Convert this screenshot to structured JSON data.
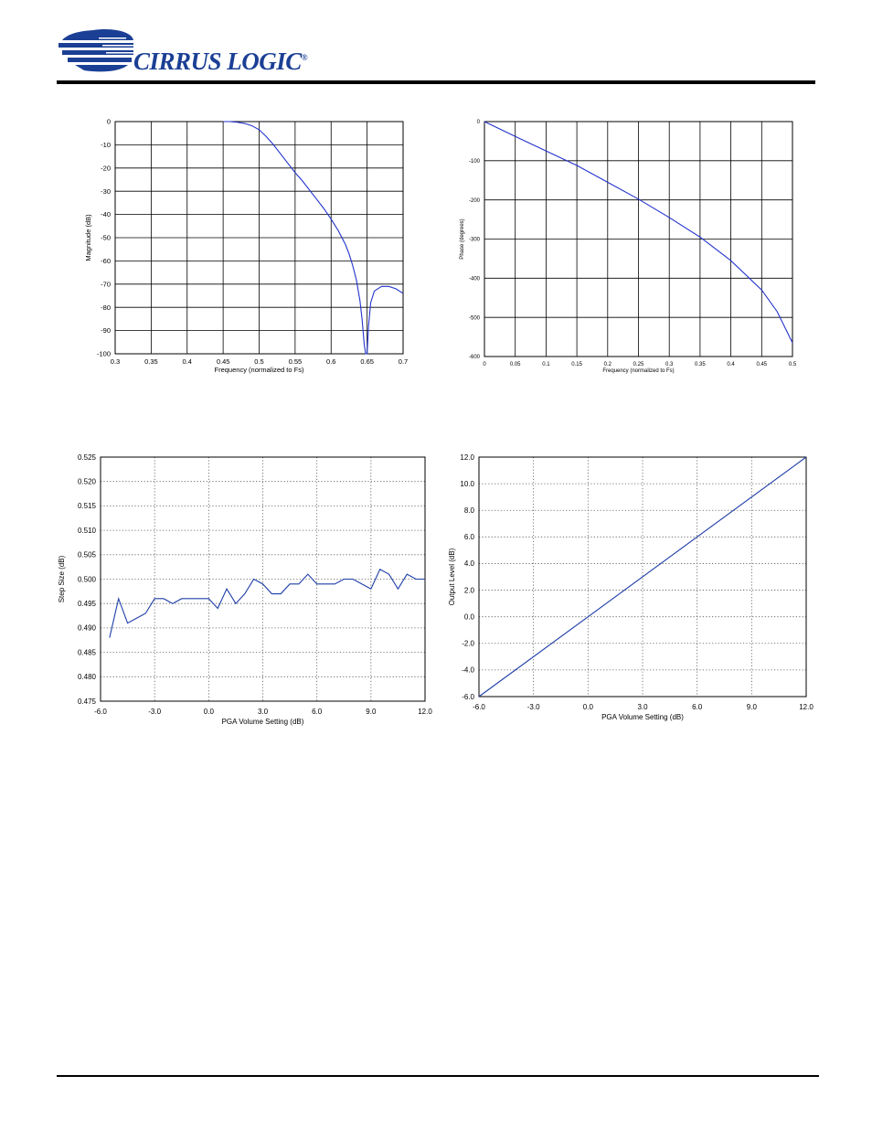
{
  "header": {
    "brand_text": "CIRRUS LOGIC",
    "brand_mark": "®",
    "logo_icon": "cirrus-logic-swoosh-logo",
    "brand_color": "#1b3f95"
  },
  "chart_data": [
    {
      "id": "magnitude",
      "type": "line",
      "title": "",
      "xlabel": "Frequency (normalized to Fs)",
      "ylabel": "Magnitude (dB)",
      "xlim": [
        0.3,
        0.7
      ],
      "ylim": [
        -100,
        0
      ],
      "xticks": [
        0.3,
        0.35,
        0.4,
        0.45,
        0.5,
        0.55,
        0.6,
        0.65,
        0.7
      ],
      "yticks": [
        0,
        -10,
        -20,
        -30,
        -40,
        -50,
        -60,
        -70,
        -80,
        -90,
        -100
      ],
      "xtick_labels": [
        "0.3",
        "0.35",
        "0.4",
        "0.45",
        "0.5",
        "0.55",
        "0.6",
        "0.65",
        "0.7"
      ],
      "ytick_labels": [
        "0",
        "-10",
        "-20",
        "-30",
        "-40",
        "-50",
        "-60",
        "-70",
        "-80",
        "-90",
        "-100"
      ],
      "grid": "solid",
      "line_color": "#2233cc",
      "series": [
        {
          "x": [
            0.45,
            0.46,
            0.47,
            0.48,
            0.49,
            0.5,
            0.51,
            0.52,
            0.53,
            0.54,
            0.55,
            0.56,
            0.57,
            0.58,
            0.59,
            0.6,
            0.61,
            0.62,
            0.625,
            0.63,
            0.635,
            0.64,
            0.643,
            0.646,
            0.648,
            0.65,
            0.652,
            0.655,
            0.66,
            0.67,
            0.68,
            0.69,
            0.7
          ],
          "y": [
            0,
            0,
            -0.3,
            -0.8,
            -1.8,
            -3.5,
            -6.5,
            -10,
            -14,
            -18,
            -22,
            -25.5,
            -29.5,
            -33.5,
            -37.5,
            -42,
            -47,
            -53,
            -57,
            -62,
            -68,
            -77,
            -85,
            -96,
            -100,
            -100,
            -88,
            -78,
            -73,
            -71,
            -71,
            -72,
            -74
          ]
        }
      ]
    },
    {
      "id": "phase",
      "type": "line",
      "title": "",
      "xlabel": "Frequency (normalized to Fs)",
      "ylabel": "Phase (degrees)",
      "xlim": [
        0,
        0.5
      ],
      "ylim": [
        -600,
        0
      ],
      "xticks": [
        0,
        0.05,
        0.1,
        0.15,
        0.2,
        0.25,
        0.3,
        0.35,
        0.4,
        0.45,
        0.5
      ],
      "yticks": [
        0,
        -100,
        -200,
        -300,
        -400,
        -500,
        -600
      ],
      "xtick_labels": [
        "0",
        "0.05",
        "0.1",
        "0.15",
        "0.2",
        "0.25",
        "0.3",
        "0.35",
        "0.4",
        "0.45",
        "0.5"
      ],
      "ytick_labels": [
        "0",
        "-100",
        "-200",
        "-300",
        "-400",
        "-500",
        "-600"
      ],
      "grid": "solid",
      "line_color": "#2233cc",
      "series": [
        {
          "x": [
            0,
            0.05,
            0.1,
            0.15,
            0.2,
            0.25,
            0.3,
            0.35,
            0.4,
            0.45,
            0.475,
            0.5
          ],
          "y": [
            0,
            -38,
            -75,
            -112,
            -155,
            -198,
            -245,
            -295,
            -355,
            -430,
            -485,
            -565
          ]
        }
      ]
    },
    {
      "id": "step-size",
      "type": "line",
      "title": "",
      "xlabel": "PGA Volume Setting (dB)",
      "ylabel": "Step Size (dB)",
      "xlim": [
        -6,
        12
      ],
      "ylim": [
        0.475,
        0.525
      ],
      "xticks": [
        -6,
        -3,
        0,
        3,
        6,
        9,
        12
      ],
      "yticks": [
        0.475,
        0.48,
        0.485,
        0.49,
        0.495,
        0.5,
        0.505,
        0.51,
        0.515,
        0.52,
        0.525
      ],
      "xtick_labels": [
        "-6.0",
        "-3.0",
        "0.0",
        "3.0",
        "6.0",
        "9.0",
        "12.0"
      ],
      "ytick_labels": [
        "0.475",
        "0.480",
        "0.485",
        "0.490",
        "0.495",
        "0.500",
        "0.505",
        "0.510",
        "0.515",
        "0.520",
        "0.525"
      ],
      "grid": "dotted",
      "line_color": "#1f3ea8",
      "series": [
        {
          "x": [
            -5.5,
            -5.0,
            -4.5,
            -4.0,
            -3.5,
            -3.0,
            -2.5,
            -2.0,
            -1.5,
            -1.0,
            -0.5,
            0.0,
            0.5,
            1.0,
            1.5,
            2.0,
            2.5,
            3.0,
            3.5,
            4.0,
            4.5,
            5.0,
            5.5,
            6.0,
            6.5,
            7.0,
            7.5,
            8.0,
            8.5,
            9.0,
            9.5,
            10.0,
            10.5,
            11.0,
            11.5,
            12.0
          ],
          "y": [
            0.488,
            0.496,
            0.491,
            0.492,
            0.493,
            0.496,
            0.496,
            0.495,
            0.496,
            0.496,
            0.496,
            0.496,
            0.494,
            0.498,
            0.495,
            0.497,
            0.5,
            0.499,
            0.497,
            0.497,
            0.499,
            0.499,
            0.501,
            0.499,
            0.499,
            0.499,
            0.5,
            0.5,
            0.499,
            0.498,
            0.502,
            0.501,
            0.498,
            0.501,
            0.5,
            0.5
          ]
        }
      ]
    },
    {
      "id": "output-level",
      "type": "line",
      "title": "",
      "xlabel": "PGA Volume Setting (dB)",
      "ylabel": "Output Level (dB)",
      "xlim": [
        -6,
        12
      ],
      "ylim": [
        -6,
        12
      ],
      "xticks": [
        -6,
        -3,
        0,
        3,
        6,
        9,
        12
      ],
      "yticks": [
        -6,
        -4,
        -2,
        0,
        2,
        4,
        6,
        8,
        10,
        12
      ],
      "xtick_labels": [
        "-6.0",
        "-3.0",
        "0.0",
        "3.0",
        "6.0",
        "9.0",
        "12.0"
      ],
      "ytick_labels": [
        "-6.0",
        "-4.0",
        "-2.0",
        "0.0",
        "2.0",
        "4.0",
        "6.0",
        "8.0",
        "10.0",
        "12.0"
      ],
      "grid": "dotted",
      "line_color": "#1f3ea8",
      "series": [
        {
          "x": [
            -6,
            12
          ],
          "y": [
            -6,
            12
          ]
        }
      ]
    }
  ]
}
